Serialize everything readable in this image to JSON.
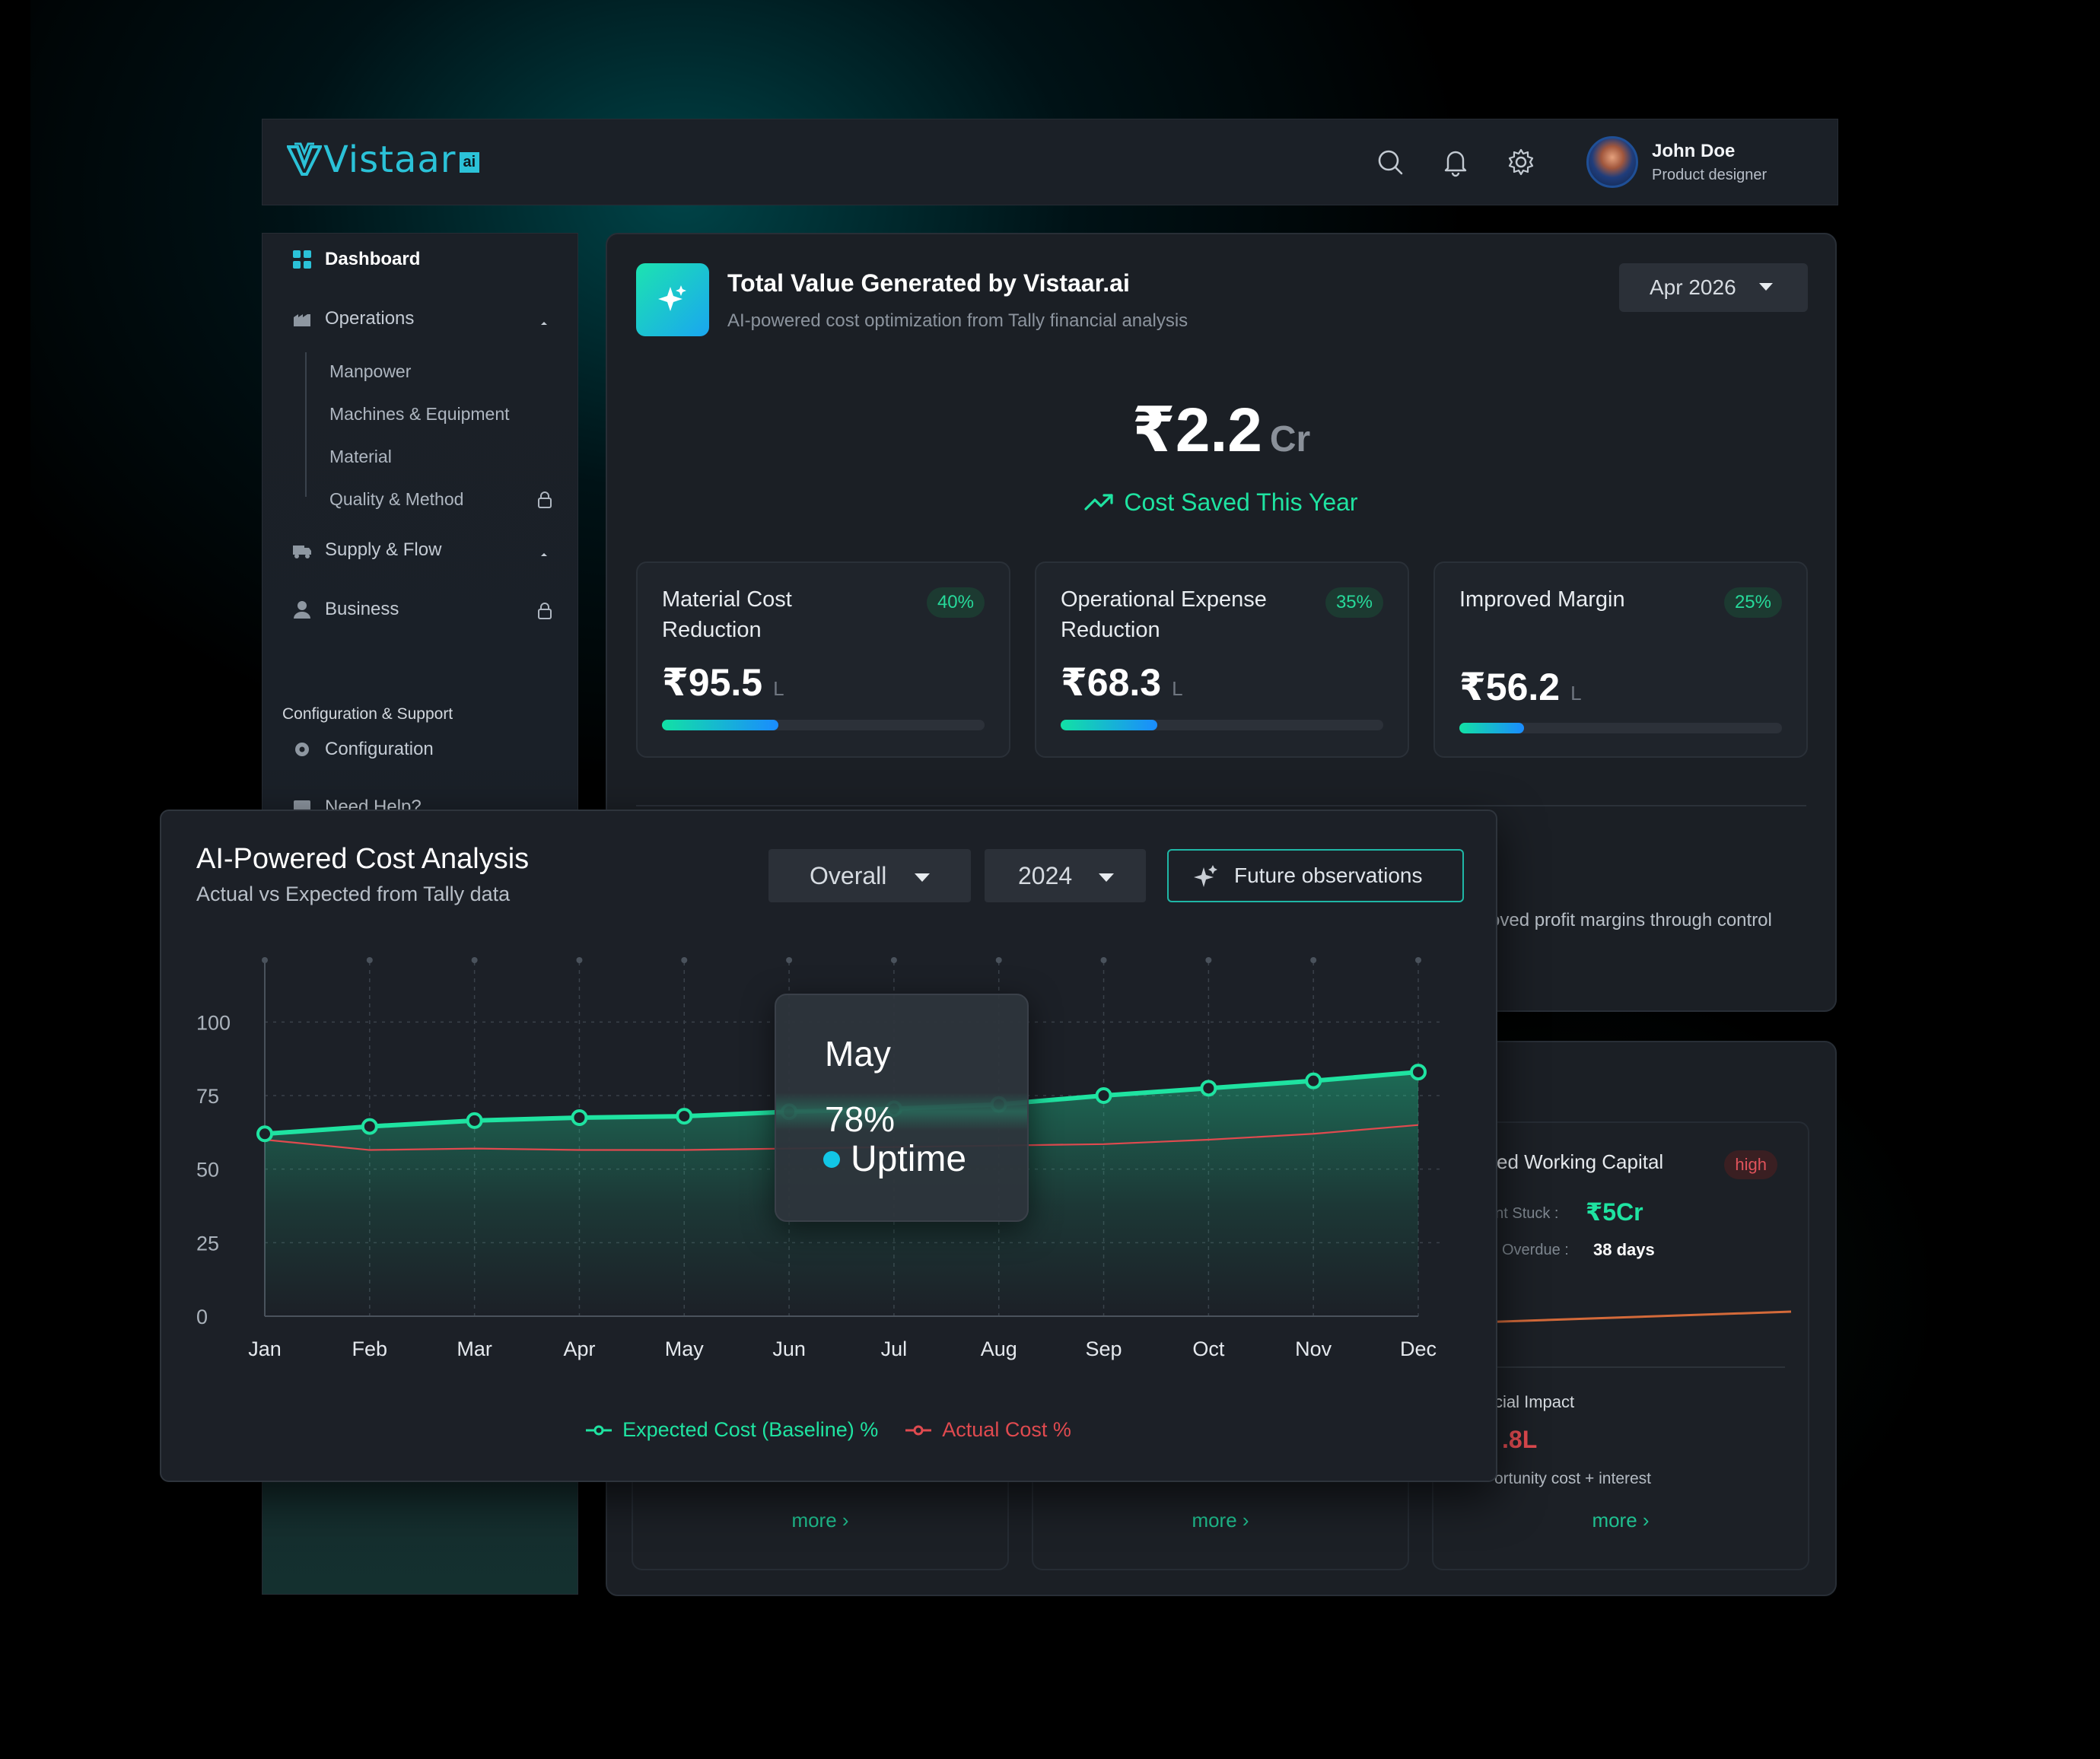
{
  "brand": {
    "name": "Vistaar",
    "suffix": "ai",
    "color": "#2bc2d8"
  },
  "header": {
    "icons": [
      "search-icon",
      "bell-icon",
      "settings-icon"
    ],
    "user": {
      "name": "John Doe",
      "role": "Product designer"
    }
  },
  "sidebar": {
    "items": [
      {
        "label": "Dashboard",
        "icon": "grid-icon",
        "active": true
      },
      {
        "label": "Operations",
        "icon": "factory-icon",
        "expanded": true,
        "children": [
          "Manpower",
          "Machines & Equipment",
          "Material",
          "Quality & Method"
        ]
      },
      {
        "label": "Supply & Flow",
        "icon": "truck-icon"
      },
      {
        "label": "Business",
        "icon": "person-icon",
        "locked": true
      }
    ],
    "section_title": "Configuration & Support",
    "config": {
      "label": "Configuration",
      "icon": "gear-icon"
    },
    "help": {
      "label": "Need Help?"
    }
  },
  "value_card": {
    "title": "Total Value Generated by Vistaar.ai",
    "subtitle": "AI-powered cost optimization from Tally financial analysis",
    "period": "Apr 2026",
    "total": {
      "value": "₹2.2",
      "unit": "Cr"
    },
    "saved_label": "Cost Saved This Year",
    "metrics": [
      {
        "label": "Material Cost Reduction",
        "badge": "40%",
        "value": "₹95.5",
        "unit": "L",
        "progress": 0.36
      },
      {
        "label": "Operational Expense Reduction",
        "badge": "35%",
        "value": "₹68.3",
        "unit": "L",
        "progress": 0.3
      },
      {
        "label": "Improved Margin",
        "badge": "25%",
        "value": "₹56.2",
        "unit": "L",
        "progress": 0.2
      }
    ],
    "peek_text": "oved profit margins through control"
  },
  "lower_card": {
    "more_label": "more ›",
    "working_capital": {
      "title": "ked Working Capital",
      "badge": "high",
      "amount_label": "unt Stuck :",
      "amount_value": "₹5Cr",
      "overdue_label": "Overdue :",
      "overdue_value": "38 days",
      "impact_title": "cial Impact",
      "impact_value": ".8L",
      "impact_sub": "ortunity cost + interest"
    }
  },
  "analysis": {
    "title": "AI-Powered Cost Analysis",
    "subtitle": "Actual vs Expected from Tally data",
    "filter": "Overall",
    "year": "2024",
    "future_label": "Future observations",
    "tooltip": {
      "month": "May",
      "value": "78%",
      "label": "Uptime"
    }
  },
  "chart_data": {
    "type": "line",
    "x": [
      "Jan",
      "Feb",
      "Mar",
      "Apr",
      "May",
      "Jun",
      "Jul",
      "Aug",
      "Sep",
      "Oct",
      "Nov",
      "Dec"
    ],
    "yticks": [
      0,
      25,
      50,
      75,
      100
    ],
    "ylim": [
      0,
      120
    ],
    "series": [
      {
        "name": "Expected Cost (Baseline) %",
        "color": "#1fe3a1",
        "values": [
          62,
          64.5,
          66.5,
          67.5,
          68,
          69.5,
          70.5,
          72,
          75,
          77.5,
          80,
          83
        ]
      },
      {
        "name": "Actual Cost %",
        "color": "#e04a4f",
        "values": [
          60,
          56.5,
          57,
          56.5,
          56.5,
          57,
          57.5,
          58,
          58.5,
          60,
          62,
          65
        ]
      }
    ],
    "legend": "bottom-center",
    "grid": true
  }
}
